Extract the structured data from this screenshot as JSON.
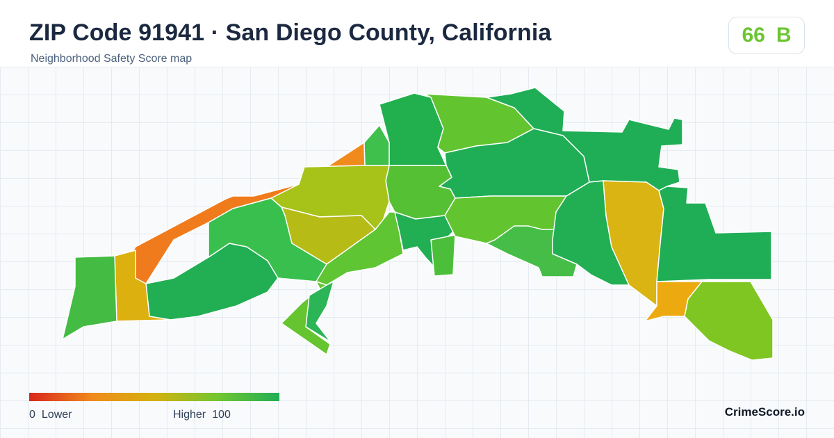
{
  "header": {
    "title": "ZIP Code 91941 · San Diego County, California",
    "subtitle": "Neighborhood Safety Score map"
  },
  "score_badge": {
    "score": "66",
    "grade": "B",
    "color": "#6cc531"
  },
  "legend": {
    "min_value": "0",
    "min_label": "Lower",
    "max_label": "Higher",
    "max_value": "100",
    "colors": [
      "#d9261c",
      "#f08a1c",
      "#d4b10e",
      "#74c630",
      "#1fae55"
    ]
  },
  "brand": "CrimeScore.io",
  "map": {
    "regions": [
      {
        "name": "north-central",
        "color": "#22b04f"
      },
      {
        "name": "north-upper",
        "color": "#62c530"
      },
      {
        "name": "northeast",
        "color": "#1fae55"
      },
      {
        "name": "center",
        "color": "#1fae55"
      },
      {
        "name": "central-mid",
        "color": "#56c034"
      },
      {
        "name": "northwest-strip",
        "color": "#f08a1c"
      },
      {
        "name": "west-strip",
        "color": "#f07b1c"
      },
      {
        "name": "west-mid",
        "color": "#a7c31a"
      },
      {
        "name": "west-center",
        "color": "#b6bb16"
      },
      {
        "name": "southwest",
        "color": "#22ae53"
      },
      {
        "name": "west-narrow",
        "color": "#dcb00e"
      },
      {
        "name": "far-west",
        "color": "#44bb42"
      },
      {
        "name": "west-green",
        "color": "#39bf4d"
      },
      {
        "name": "south-central",
        "color": "#5fc533"
      },
      {
        "name": "south-tongue",
        "color": "#66c430"
      },
      {
        "name": "south-inner",
        "color": "#2bb556"
      },
      {
        "name": "east-mid",
        "color": "#62c530"
      },
      {
        "name": "east-green",
        "color": "#22ae53"
      },
      {
        "name": "east-yellow",
        "color": "#dab412"
      },
      {
        "name": "far-east",
        "color": "#1fae55"
      },
      {
        "name": "southeast-orange",
        "color": "#ecaa10"
      },
      {
        "name": "southeast",
        "color": "#80c623"
      }
    ]
  }
}
